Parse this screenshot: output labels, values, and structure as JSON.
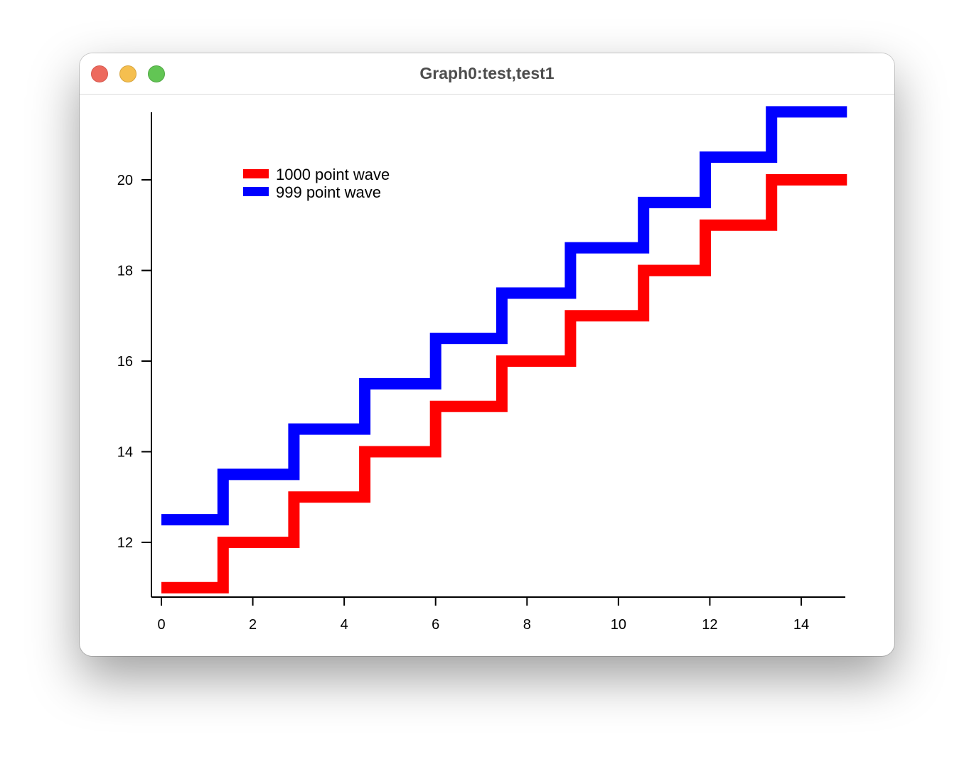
{
  "window": {
    "title": "Graph0:test,test1"
  },
  "chart_data": {
    "type": "line",
    "title": "",
    "xlabel": "",
    "ylabel": "",
    "xlim": [
      -0.2,
      15
    ],
    "ylim": [
      10.8,
      21.5
    ],
    "x_ticks": [
      0,
      2,
      4,
      6,
      8,
      10,
      12,
      14
    ],
    "y_ticks": [
      12,
      14,
      16,
      18,
      20
    ],
    "grid": false,
    "legend_placement": "top-left",
    "series": [
      {
        "name": "1000 point wave",
        "color": "#ff0000",
        "style": "staircase",
        "steps": [
          {
            "x_start": 0,
            "x_end": 1.35,
            "y": 11
          },
          {
            "x_start": 1.35,
            "x_end": 2.9,
            "y": 12
          },
          {
            "x_start": 2.9,
            "x_end": 4.45,
            "y": 13
          },
          {
            "x_start": 4.45,
            "x_end": 6.0,
            "y": 14
          },
          {
            "x_start": 6.0,
            "x_end": 7.45,
            "y": 15
          },
          {
            "x_start": 7.45,
            "x_end": 8.95,
            "y": 16
          },
          {
            "x_start": 8.95,
            "x_end": 10.55,
            "y": 17
          },
          {
            "x_start": 10.55,
            "x_end": 11.9,
            "y": 18
          },
          {
            "x_start": 11.9,
            "x_end": 13.35,
            "y": 19
          },
          {
            "x_start": 13.35,
            "x_end": 15.0,
            "y": 20
          }
        ]
      },
      {
        "name": "999 point wave",
        "color": "#0000ff",
        "style": "staircase",
        "steps": [
          {
            "x_start": 0,
            "x_end": 1.35,
            "y": 12.5
          },
          {
            "x_start": 1.35,
            "x_end": 2.9,
            "y": 13.5
          },
          {
            "x_start": 2.9,
            "x_end": 4.45,
            "y": 14.5
          },
          {
            "x_start": 4.45,
            "x_end": 6.0,
            "y": 15.5
          },
          {
            "x_start": 6.0,
            "x_end": 7.45,
            "y": 16.5
          },
          {
            "x_start": 7.45,
            "x_end": 8.95,
            "y": 17.5
          },
          {
            "x_start": 8.95,
            "x_end": 10.55,
            "y": 18.5
          },
          {
            "x_start": 10.55,
            "x_end": 11.9,
            "y": 19.5
          },
          {
            "x_start": 11.9,
            "x_end": 13.35,
            "y": 20.5
          },
          {
            "x_start": 13.35,
            "x_end": 15.0,
            "y": 21.5
          }
        ]
      }
    ]
  }
}
